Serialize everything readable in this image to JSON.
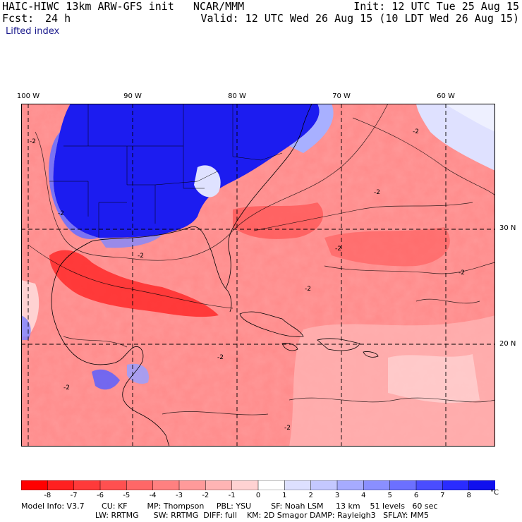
{
  "header": {
    "model": "HAIC-HIWC 13km ARW-GFS init   NCAR/MMM",
    "init": "Init: 12 UTC Tue 25 Aug 15",
    "fcst_label": "Fcst:",
    "fcst_value": "24 h",
    "valid": "Valid: 12 UTC Wed 26 Aug 15 (10 LDT Wed 26 Aug 15)",
    "field": "Lifted index"
  },
  "axes": {
    "lon_labels": [
      "100 W",
      "90 W",
      "80 W",
      "70 W",
      "60 W"
    ],
    "lat_labels": [
      "30 N",
      "20 N"
    ]
  },
  "map": {
    "contour_labels": [
      "-2",
      "-2",
      "-2",
      "-2",
      "-2",
      "-2",
      "-2",
      "-2",
      "-2",
      "-2",
      "-2"
    ]
  },
  "colorbar": {
    "ticks": [
      "-8",
      "-7",
      "-6",
      "-5",
      "-4",
      "-3",
      "-2",
      "-1",
      "0",
      "1",
      "2",
      "3",
      "4",
      "5",
      "6",
      "7",
      "8"
    ],
    "unit": "°C",
    "colors": [
      "#ff0000",
      "#ff2020",
      "#ff3a3a",
      "#ff5050",
      "#ff6767",
      "#ff8080",
      "#ff9a9a",
      "#ffb4b4",
      "#ffd2d2",
      "#ffffff",
      "#dde0ff",
      "#c4c8ff",
      "#a6abff",
      "#8a8fff",
      "#6c70ff",
      "#4a4dff",
      "#2a2cff",
      "#1010ee"
    ]
  },
  "footer": {
    "line1": "Model Info: V3.7       CU: KF        MP: Thompson     PBL: YSU        SF: Noah LSM     13 km    51 levels   60 sec",
    "line2": "                              LW: RRTMG      SW: RRTMG  DIFF: full    KM: 2D Smagor DAMP: Rayleigh3   SFLAY: MM5"
  }
}
